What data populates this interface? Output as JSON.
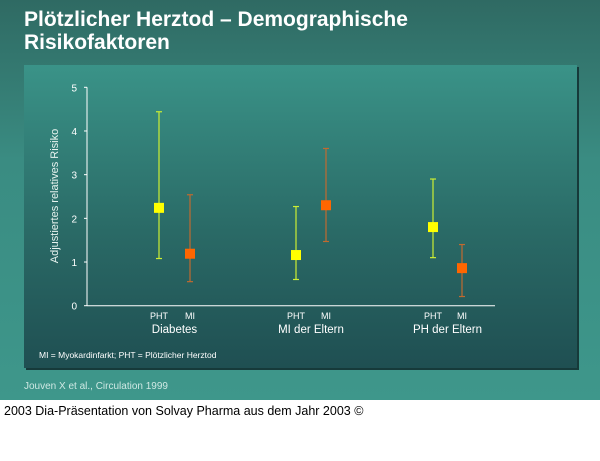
{
  "slide": {
    "title_line1": "Plötzlicher Herztod – Demographische",
    "title_line2": "Risikofaktoren",
    "citation": "Jouven X et al., Circulation 1999",
    "abbreviations": "MI = Myokardinfarkt; PHT = Plötzlicher Herztod"
  },
  "footer": "2003 Dia-Präsentation von Solvay Pharma aus dem Jahr 2003 ©",
  "chart_data": {
    "type": "scatter",
    "subtype": "error-bar",
    "ylabel": "Adjustiertes relatives Risiko",
    "ylim": [
      0,
      5
    ],
    "yticks": [
      "0",
      "1",
      "2",
      "3",
      "4",
      "5"
    ],
    "grid": false,
    "colors": {
      "PHT": "#ffff00",
      "MI": "#ff6600",
      "PHT_bar": "#ccee33",
      "MI_bar": "#c06a30"
    },
    "groups": [
      {
        "label": "Diabetes",
        "points": [
          {
            "series": "PHT",
            "value": 2.24,
            "low": 1.08,
            "high": 4.44
          },
          {
            "series": "MI",
            "value": 1.19,
            "low": 0.55,
            "high": 2.54
          }
        ]
      },
      {
        "label": "MI der Eltern",
        "points": [
          {
            "series": "PHT",
            "value": 1.16,
            "low": 0.6,
            "high": 2.27
          },
          {
            "series": "MI",
            "value": 2.3,
            "low": 1.47,
            "high": 3.6
          }
        ]
      },
      {
        "label": "PH der Eltern",
        "points": [
          {
            "series": "PHT",
            "value": 1.8,
            "low": 1.1,
            "high": 2.9
          },
          {
            "series": "MI",
            "value": 0.86,
            "low": 0.21,
            "high": 1.4
          }
        ]
      }
    ]
  }
}
